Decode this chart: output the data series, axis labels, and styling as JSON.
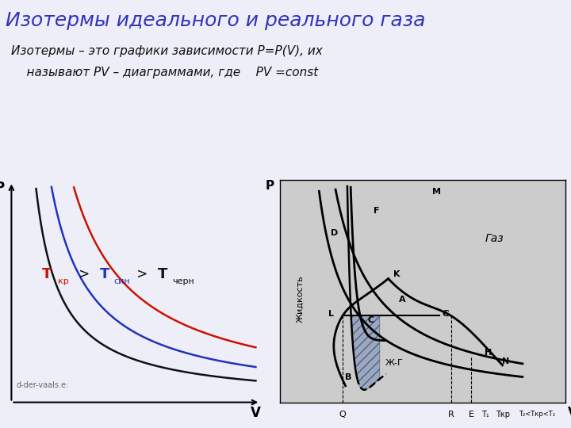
{
  "title": "Изотермы идеального и реального газа",
  "title_color": "#3333bb",
  "title_fontsize": 18,
  "subtitle_line1": "Изотермы – это графики зависимости P=P(V), их",
  "subtitle_line2": "    называют PV – диаграммами, где    PV =const",
  "subtitle_fontsize": 11,
  "subtitle_color": "#111111",
  "background_color": "#eeeef8",
  "left_panel_bg": "#eeeef8",
  "right_panel_bg": "#cccccc",
  "watermark": "d-der-vaals.e:"
}
